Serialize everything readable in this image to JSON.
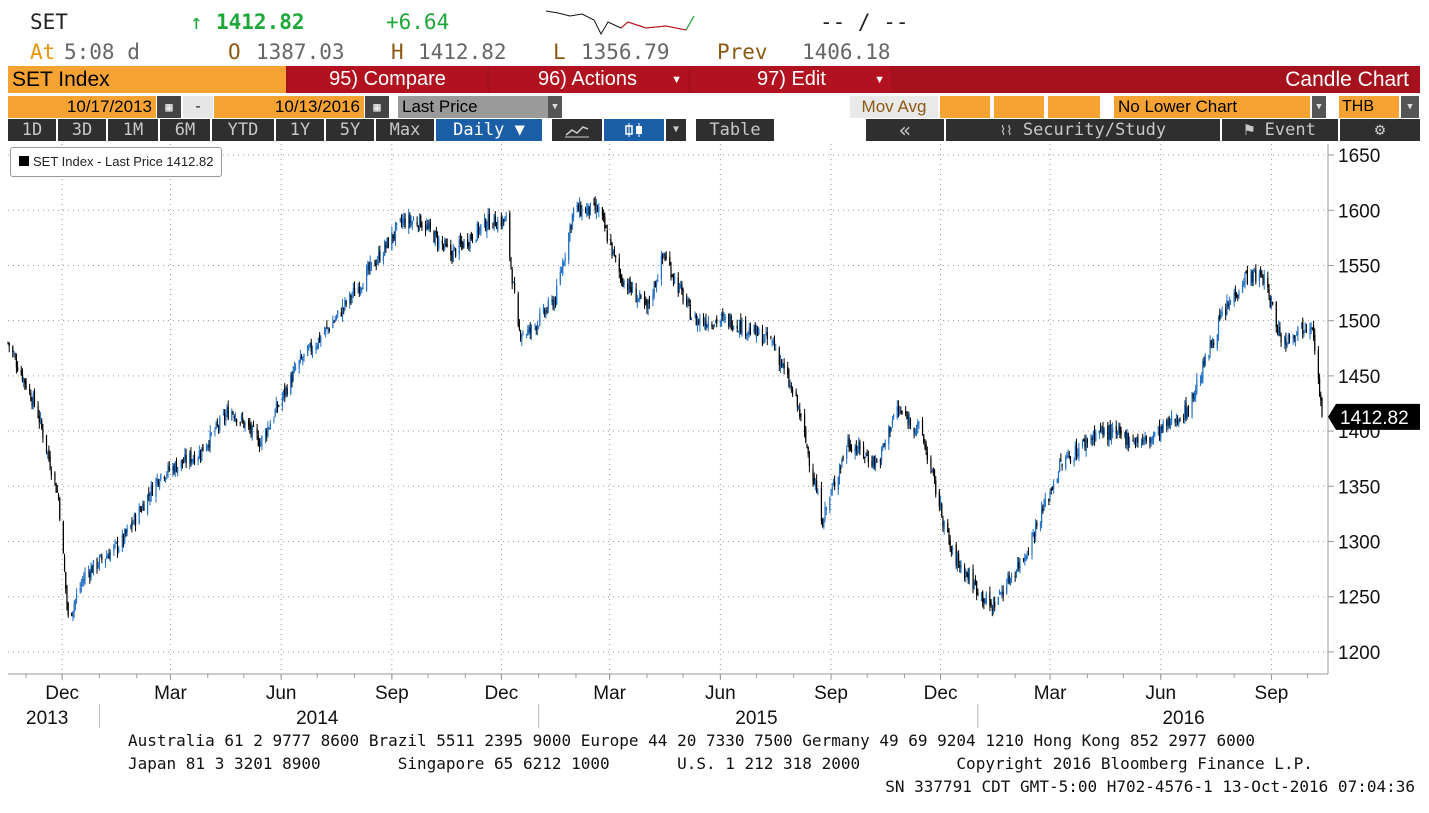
{
  "quote": {
    "ticker": "SET",
    "arrow": "↑",
    "last": "1412.82",
    "change": "+6.64",
    "bidask": "-- / --",
    "at_label": "At",
    "time": "5:08 d",
    "open_label": "O",
    "open": "1387.03",
    "high_label": "H",
    "high": "1412.82",
    "low_label": "L",
    "low": "1356.79",
    "prev_label": "Prev",
    "prev": "1406.18"
  },
  "menubar": {
    "security": "SET Index",
    "compare": "95) Compare",
    "actions": "96) Actions",
    "edit": "97) Edit",
    "chart_type": "Candle Chart"
  },
  "range": {
    "start": "10/17/2013",
    "dash": "-",
    "end": "10/13/2016",
    "field": "Last Price",
    "mov_avg": "Mov Avg",
    "lower_chart": "No Lower Chart",
    "currency": "THB"
  },
  "periods": [
    "1D",
    "3D",
    "1M",
    "6M",
    "YTD",
    "1Y",
    "5Y",
    "Max"
  ],
  "frequency": "Daily ▼",
  "table_label": "Table",
  "collapse_label": "«",
  "security_study": "Security/Study",
  "event": "Event",
  "legend": "SET Index - Last Price 1412.82",
  "last_price_tag": "1412.82",
  "footer": {
    "line1": "Australia 61 2 9777 8600 Brazil 5511 2395 9000 Europe 44 20 7330 7500 Germany 49 69 9204 1210 Hong Kong 852 2977 6000",
    "line2": "Japan 81 3 3201 8900        Singapore 65 6212 1000       U.S. 1 212 318 2000          Copyright 2016 Bloomberg Finance L.P.",
    "line3": "SN 337791 CDT  GMT-5:00 H702-4576-1 13-Oct-2016 07:04:36"
  },
  "colors": {
    "up_candle": "#1f6fc4",
    "down_candle": "#000000",
    "menu_red": "#a5111c",
    "accent_orange": "#f7a334",
    "positive": "#1fa83a"
  },
  "chart_data": {
    "type": "candlestick",
    "title": "SET Index",
    "series_name": "SET Index - Last Price",
    "ylim": [
      1180,
      1660
    ],
    "y_ticks": [
      1200,
      1250,
      1300,
      1350,
      1400,
      1450,
      1500,
      1550,
      1600,
      1650
    ],
    "grid": true,
    "x_ticks": [
      "Dec",
      "Mar",
      "Jun",
      "Sep",
      "Dec",
      "Mar",
      "Jun",
      "Sep",
      "Dec",
      "Mar",
      "Jun",
      "Sep"
    ],
    "years": [
      "2013",
      "2014",
      "2015",
      "2016"
    ],
    "x_range": [
      "2013-10-17",
      "2016-10-13"
    ],
    "series": [
      {
        "x": "2013-10-17",
        "y": 1480
      },
      {
        "x": "2013-11-10",
        "y": 1420
      },
      {
        "x": "2013-11-28",
        "y": 1340
      },
      {
        "x": "2013-12-06",
        "y": 1230
      },
      {
        "x": "2013-12-20",
        "y": 1270
      },
      {
        "x": "2014-01-20",
        "y": 1300
      },
      {
        "x": "2014-02-20",
        "y": 1360
      },
      {
        "x": "2014-03-25",
        "y": 1380
      },
      {
        "x": "2014-04-20",
        "y": 1420
      },
      {
        "x": "2014-05-15",
        "y": 1390
      },
      {
        "x": "2014-06-15",
        "y": 1460
      },
      {
        "x": "2014-07-15",
        "y": 1500
      },
      {
        "x": "2014-08-10",
        "y": 1540
      },
      {
        "x": "2014-09-10",
        "y": 1590
      },
      {
        "x": "2014-09-25",
        "y": 1590
      },
      {
        "x": "2014-10-20",
        "y": 1560
      },
      {
        "x": "2014-11-20",
        "y": 1590
      },
      {
        "x": "2014-12-05",
        "y": 1590
      },
      {
        "x": "2014-12-15",
        "y": 1490
      },
      {
        "x": "2014-12-25",
        "y": 1490
      },
      {
        "x": "2015-01-15",
        "y": 1520
      },
      {
        "x": "2015-01-30",
        "y": 1600
      },
      {
        "x": "2015-02-20",
        "y": 1600
      },
      {
        "x": "2015-03-10",
        "y": 1540
      },
      {
        "x": "2015-04-01",
        "y": 1510
      },
      {
        "x": "2015-04-15",
        "y": 1560
      },
      {
        "x": "2015-05-10",
        "y": 1500
      },
      {
        "x": "2015-06-10",
        "y": 1500
      },
      {
        "x": "2015-07-15",
        "y": 1480
      },
      {
        "x": "2015-08-05",
        "y": 1420
      },
      {
        "x": "2015-08-25",
        "y": 1320
      },
      {
        "x": "2015-09-15",
        "y": 1390
      },
      {
        "x": "2015-10-10",
        "y": 1370
      },
      {
        "x": "2015-10-25",
        "y": 1420
      },
      {
        "x": "2015-11-15",
        "y": 1400
      },
      {
        "x": "2015-12-10",
        "y": 1290
      },
      {
        "x": "2016-01-12",
        "y": 1240
      },
      {
        "x": "2016-02-10",
        "y": 1290
      },
      {
        "x": "2016-03-10",
        "y": 1370
      },
      {
        "x": "2016-04-10",
        "y": 1400
      },
      {
        "x": "2016-05-20",
        "y": 1390
      },
      {
        "x": "2016-06-24",
        "y": 1420
      },
      {
        "x": "2016-07-20",
        "y": 1500
      },
      {
        "x": "2016-08-10",
        "y": 1540
      },
      {
        "x": "2016-08-25",
        "y": 1540
      },
      {
        "x": "2016-09-10",
        "y": 1480
      },
      {
        "x": "2016-09-20",
        "y": 1490
      },
      {
        "x": "2016-10-05",
        "y": 1500
      },
      {
        "x": "2016-10-13",
        "y": 1412.82
      }
    ]
  }
}
